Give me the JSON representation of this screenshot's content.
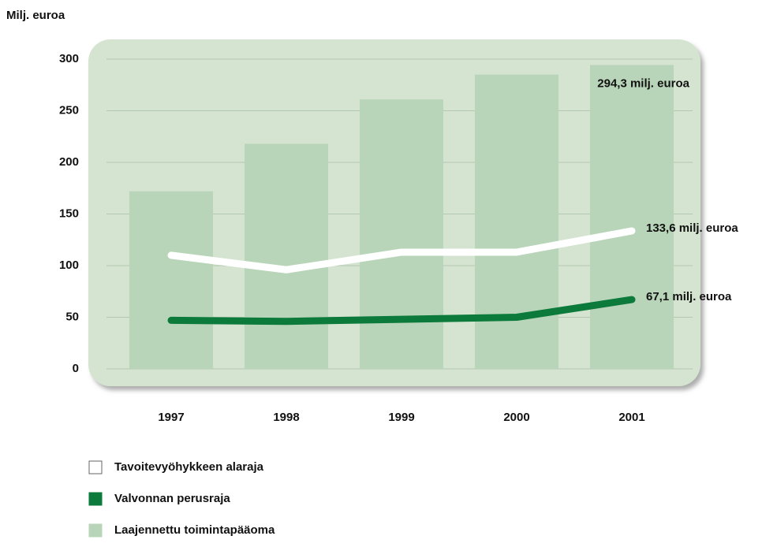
{
  "chart_data": {
    "type": "bar",
    "y_axis_label": "Milj. euroa",
    "categories": [
      "1997",
      "1998",
      "1999",
      "2000",
      "2001"
    ],
    "series": [
      {
        "name": "Tavoitevyöhykkeen alaraja",
        "type": "line",
        "color": "#ffffff",
        "values": [
          110,
          96,
          113,
          113,
          133.6
        ],
        "value_labels": [
          null,
          null,
          null,
          null,
          "133,6 milj. euroa"
        ]
      },
      {
        "name": "Valvonnan perusraja",
        "type": "line",
        "color": "#0b7a3a",
        "values": [
          47,
          46,
          48,
          50,
          67.1
        ],
        "value_labels": [
          null,
          null,
          null,
          null,
          "67,1 milj. euroa"
        ]
      },
      {
        "name": "Laajennettu toimintapääoma",
        "type": "bar",
        "color": "#b9d5b9",
        "values": [
          172,
          218,
          261,
          285,
          294.3
        ],
        "value_labels": [
          null,
          null,
          null,
          null,
          "294,3 milj. euroa"
        ]
      }
    ],
    "ylim": [
      0,
      300
    ],
    "yticks": [
      0,
      50,
      100,
      150,
      200,
      250,
      300
    ],
    "grid": true
  }
}
